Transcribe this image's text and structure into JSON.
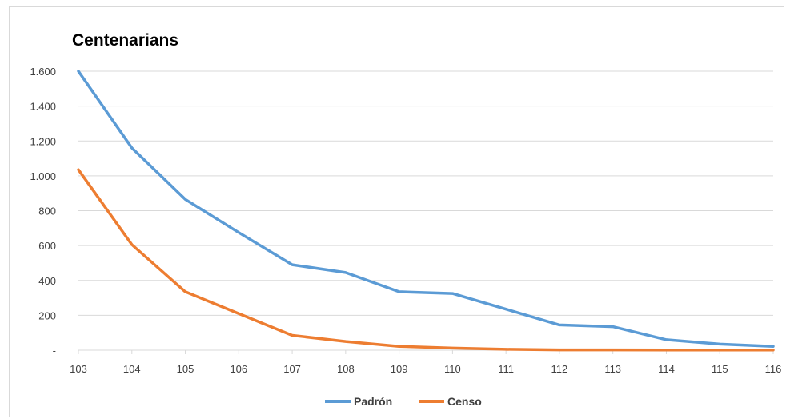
{
  "chart_data": {
    "type": "line",
    "title": "Centenarians",
    "xlabel": "",
    "ylabel": "",
    "x": [
      "103",
      "104",
      "105",
      "106",
      "107",
      "108",
      "109",
      "110",
      "111",
      "112",
      "113",
      "114",
      "115",
      "116"
    ],
    "ylim": [
      0,
      1600
    ],
    "yticks": [
      0,
      200,
      400,
      600,
      800,
      1000,
      1200,
      1400,
      1600
    ],
    "ytick_labels": [
      "-",
      "200",
      "400",
      "600",
      "800",
      "1.000",
      "1.200",
      "1.400",
      "1.600"
    ],
    "grid": true,
    "legend_position": "bottom",
    "series": [
      {
        "name": "Padrón",
        "color": "#5b9bd5",
        "values": [
          1600,
          1160,
          865,
          675,
          490,
          445,
          335,
          325,
          235,
          145,
          135,
          60,
          35,
          22
        ]
      },
      {
        "name": "Censo",
        "color": "#ed7d31",
        "values": [
          1035,
          605,
          335,
          210,
          85,
          50,
          22,
          12,
          5,
          2,
          2,
          1,
          1,
          1
        ]
      }
    ]
  }
}
